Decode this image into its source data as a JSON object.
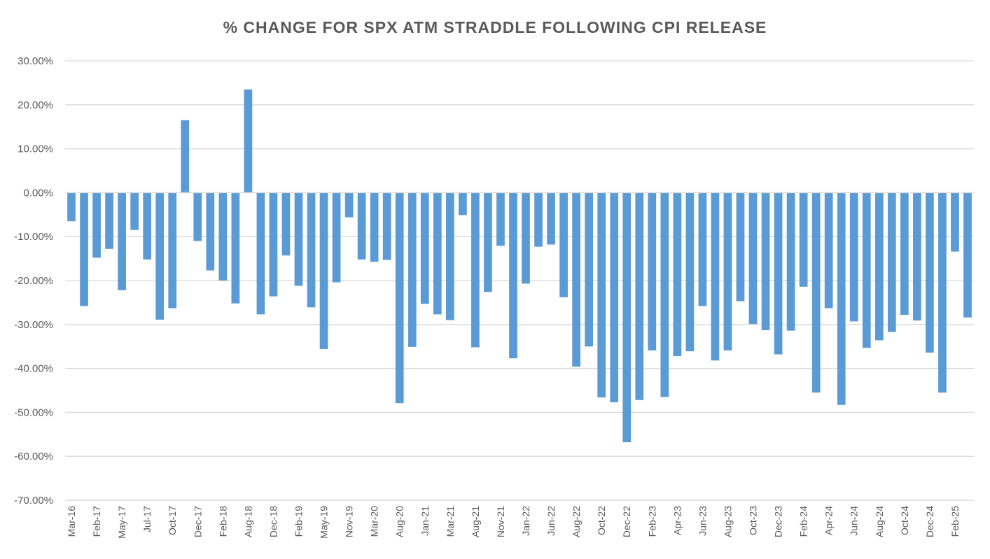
{
  "chart_data": {
    "type": "bar",
    "title": "% CHANGE FOR SPX ATM STRADDLE FOLLOWING CPI RELEASE",
    "xlabel": "",
    "ylabel": "",
    "ylim": [
      -70,
      30
    ],
    "yticks": [
      30,
      20,
      10,
      0,
      -10,
      -20,
      -30,
      -40,
      -50,
      -60,
      -70
    ],
    "ytick_labels": [
      "30.00%",
      "20.00%",
      "10.00%",
      "0.00%",
      "-10.00%",
      "-20.00%",
      "-30.00%",
      "-40.00%",
      "-50.00%",
      "-60.00%",
      "-70.00%"
    ],
    "grid": true,
    "bar_color": "#5B9BD5",
    "x_tick_labels": [
      {
        "index": 0,
        "label": "Mar-16"
      },
      {
        "index": 2,
        "label": "Feb-17"
      },
      {
        "index": 4,
        "label": "May-17"
      },
      {
        "index": 6,
        "label": "Jul-17"
      },
      {
        "index": 8,
        "label": "Oct-17"
      },
      {
        "index": 10,
        "label": "Dec-17"
      },
      {
        "index": 12,
        "label": "Feb-18"
      },
      {
        "index": 14,
        "label": "Aug-18"
      },
      {
        "index": 16,
        "label": "Dec-18"
      },
      {
        "index": 18,
        "label": "Feb-19"
      },
      {
        "index": 20,
        "label": "May-19"
      },
      {
        "index": 22,
        "label": "Nov-19"
      },
      {
        "index": 24,
        "label": "Mar-20"
      },
      {
        "index": 26,
        "label": "Aug-20"
      },
      {
        "index": 28,
        "label": "Jan-21"
      },
      {
        "index": 30,
        "label": "Mar-21"
      },
      {
        "index": 32,
        "label": "Aug-21"
      },
      {
        "index": 34,
        "label": "Nov-21"
      },
      {
        "index": 36,
        "label": "Jan-22"
      },
      {
        "index": 38,
        "label": "Jun-22"
      },
      {
        "index": 40,
        "label": "Aug-22"
      },
      {
        "index": 42,
        "label": "Oct-22"
      },
      {
        "index": 44,
        "label": "Dec-22"
      },
      {
        "index": 46,
        "label": "Feb-23"
      },
      {
        "index": 48,
        "label": "Apr-23"
      },
      {
        "index": 50,
        "label": "Jun-23"
      },
      {
        "index": 52,
        "label": "Aug-23"
      },
      {
        "index": 54,
        "label": "Oct-23"
      },
      {
        "index": 56,
        "label": "Dec-23"
      },
      {
        "index": 58,
        "label": "Feb-24"
      },
      {
        "index": 60,
        "label": "Apr-24"
      },
      {
        "index": 62,
        "label": "Jun-24"
      },
      {
        "index": 64,
        "label": "Aug-24"
      },
      {
        "index": 66,
        "label": "Oct-24"
      },
      {
        "index": 68,
        "label": "Dec-24"
      },
      {
        "index": 70,
        "label": "Feb-25"
      }
    ],
    "values": [
      -6.5,
      -25.8,
      -14.8,
      -12.8,
      -22.2,
      -8.5,
      -15.2,
      -28.9,
      -26.3,
      16.5,
      -11.0,
      -17.7,
      -20.0,
      -25.2,
      23.5,
      -27.7,
      -23.6,
      -14.3,
      -21.2,
      -26.1,
      -35.6,
      -20.4,
      -5.6,
      -15.2,
      -15.7,
      -15.3,
      -47.9,
      -35.1,
      -25.3,
      -27.7,
      -29.0,
      -5.1,
      -35.2,
      -22.6,
      -12.1,
      -37.7,
      -20.7,
      -12.3,
      -11.8,
      -23.8,
      -39.6,
      -35.0,
      -46.6,
      -47.7,
      -56.8,
      -47.2,
      -35.9,
      -46.5,
      -37.2,
      -36.1,
      -25.8,
      -38.2,
      -35.9,
      -24.7,
      -29.9,
      -31.3,
      -36.8,
      -31.4,
      -21.4,
      -45.5,
      -26.3,
      -48.3,
      -29.3,
      -35.3,
      -33.6,
      -31.7,
      -27.8,
      -29.1,
      -36.4,
      -45.5,
      -13.4,
      -28.4
    ]
  }
}
